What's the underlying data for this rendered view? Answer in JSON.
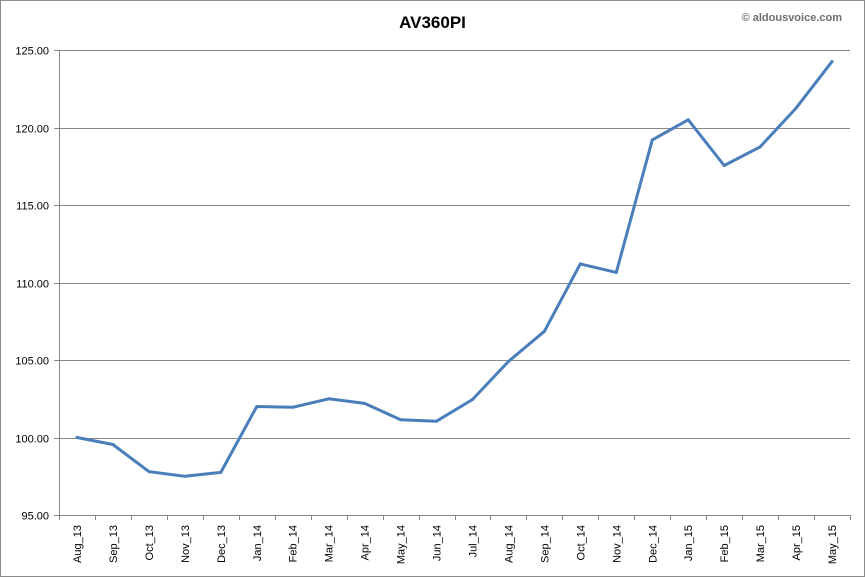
{
  "watermark": "© aldousvoice.com",
  "chart_data": {
    "type": "line",
    "title": "AV360PI",
    "xlabel": "",
    "ylabel": "",
    "categories": [
      "Aug_13",
      "Sep_13",
      "Oct_13",
      "Nov_13",
      "Dec_13",
      "Jan_14",
      "Feb_14",
      "Mar_14",
      "Apr_14",
      "May_14",
      "Jun_14",
      "Jul_14",
      "Aug_14",
      "Sep_14",
      "Oct_14",
      "Nov_14",
      "Dec_14",
      "Jan_15",
      "Feb_15",
      "Mar_15",
      "Apr_15",
      "May_15"
    ],
    "series": [
      {
        "values": [
          100.0,
          99.55,
          97.8,
          97.5,
          97.75,
          102.0,
          101.95,
          102.5,
          102.2,
          101.15,
          101.05,
          102.45,
          104.9,
          106.85,
          111.2,
          110.65,
          119.2,
          120.5,
          117.55,
          118.75,
          121.25,
          124.25
        ],
        "color": "#4a7ebb"
      }
    ],
    "ylim": [
      95,
      125
    ],
    "yticks": [
      95,
      100,
      105,
      110,
      115,
      120,
      125
    ],
    "ytick_format": "2 decimals",
    "grid": "horizontal",
    "legend": "none"
  }
}
